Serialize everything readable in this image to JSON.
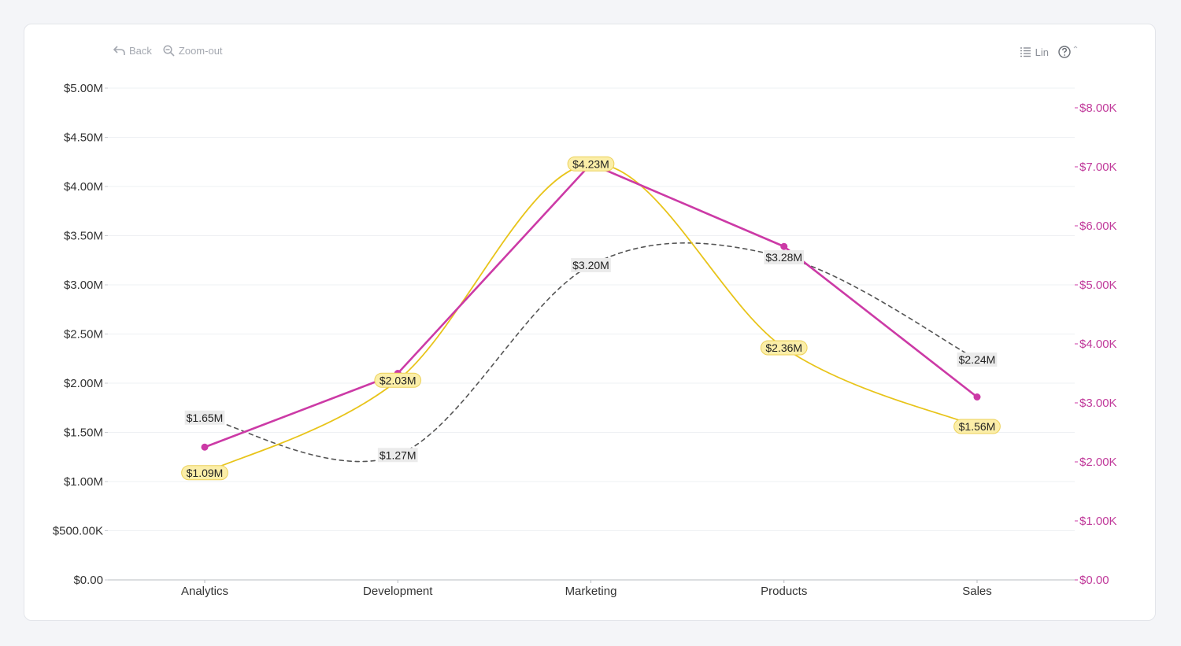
{
  "toolbar": {
    "back_label": "Back",
    "zoomout_label": "Zoom-out",
    "scale_label": "Lin"
  },
  "colors": {
    "gray_series": "#555555",
    "yellow_series": "#e8c41a",
    "magenta_series": "#cc3aa6",
    "right_axis": "#c0399a"
  },
  "chart_data": {
    "type": "line",
    "categories": [
      "Analytics",
      "Development",
      "Marketing",
      "Products",
      "Sales"
    ],
    "y_left": {
      "min": 0,
      "max": 5000000,
      "ticks": [
        0,
        500000,
        1000000,
        1500000,
        2000000,
        2500000,
        3000000,
        3500000,
        4000000,
        4500000,
        5000000
      ],
      "tick_labels": [
        "$0.00",
        "$500.00K",
        "$1.00M",
        "$1.50M",
        "$2.00M",
        "$2.50M",
        "$3.00M",
        "$3.50M",
        "$4.00M",
        "$4.50M",
        "$5.00M"
      ]
    },
    "y_right": {
      "min": 0,
      "max": 8000,
      "ticks": [
        0,
        1000,
        2000,
        3000,
        4000,
        5000,
        6000,
        7000,
        8000
      ],
      "tick_labels": [
        "$0.00",
        "$1.00K",
        "$2.00K",
        "$3.00K",
        "$4.00K",
        "$5.00K",
        "$6.00K",
        "$7.00K",
        "$8.00K"
      ]
    },
    "series": [
      {
        "style": "dashed",
        "smooth": true,
        "axis": "left",
        "color": "#555555",
        "values": [
          1650000,
          1270000,
          3200000,
          3280000,
          2240000
        ],
        "labels": [
          "$1.65M",
          "$1.27M",
          "$3.20M",
          "$3.28M",
          "$2.24M"
        ]
      },
      {
        "style": "solid",
        "smooth": true,
        "axis": "left",
        "color": "#e8c41a",
        "values": [
          1090000,
          2030000,
          4230000,
          2360000,
          1560000
        ],
        "labels": [
          "$1.09M",
          "$2.03M",
          "$4.23M",
          "$2.36M",
          "$1.56M"
        ]
      },
      {
        "style": "solid",
        "smooth": false,
        "markers": true,
        "axis": "right",
        "color": "#cc3aa6",
        "values": [
          2250,
          3500,
          7050,
          5650,
          3100
        ]
      }
    ],
    "grid": true,
    "legend": "none"
  }
}
